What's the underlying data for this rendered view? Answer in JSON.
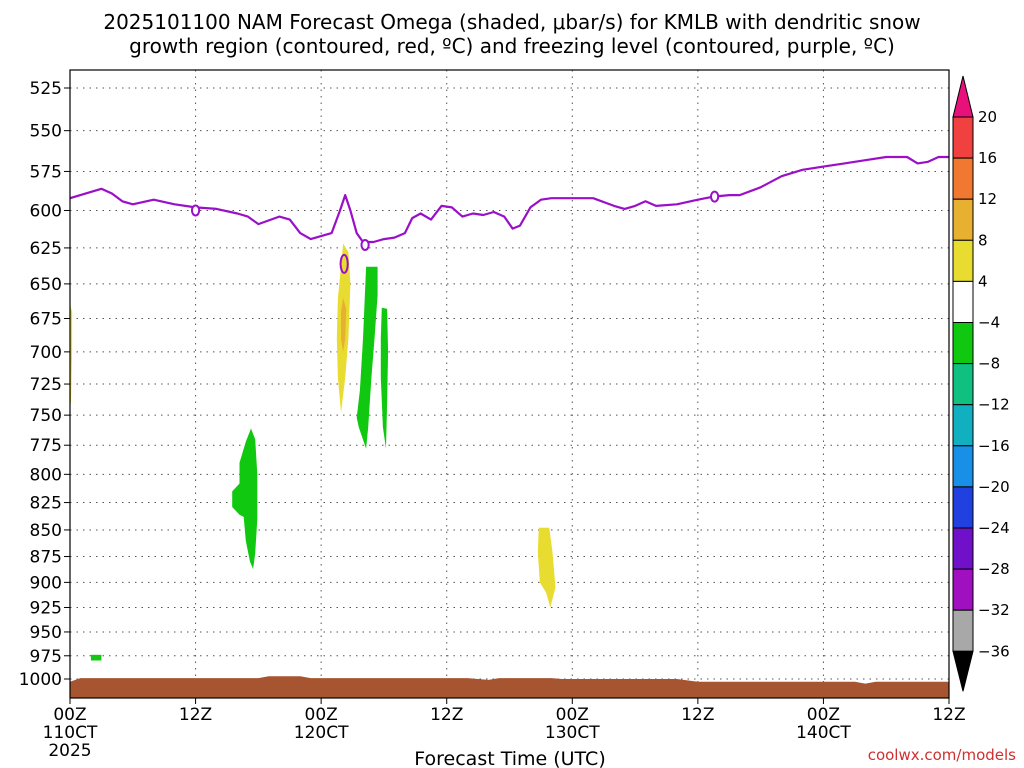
{
  "chart_data": {
    "type": "heatmap",
    "title_lines": [
      "2025101100 NAM Forecast Omega (shaded, μbar/s) for KMLB with dendritic snow",
      "growth region (contoured, red, ºC) and freezing level (contoured, purple, ºC)"
    ],
    "xlabel": "Forecast Time (UTC)",
    "x_ticks": [
      {
        "hour": 0,
        "lines": [
          "00Z",
          "110CT",
          "2025"
        ]
      },
      {
        "hour": 12,
        "lines": [
          "12Z"
        ]
      },
      {
        "hour": 24,
        "lines": [
          "00Z",
          "120CT"
        ]
      },
      {
        "hour": 36,
        "lines": [
          "12Z"
        ]
      },
      {
        "hour": 48,
        "lines": [
          "00Z",
          "130CT"
        ]
      },
      {
        "hour": 60,
        "lines": [
          "12Z"
        ]
      },
      {
        "hour": 72,
        "lines": [
          "00Z",
          "140CT"
        ]
      },
      {
        "hour": 84,
        "lines": [
          "12Z"
        ]
      }
    ],
    "xlim": [
      0,
      84
    ],
    "ylim": [
      1015,
      510
    ],
    "y_scale": "log",
    "y_ticks": [
      525,
      550,
      575,
      600,
      625,
      650,
      675,
      700,
      725,
      750,
      775,
      800,
      825,
      850,
      875,
      900,
      925,
      950,
      975,
      1000
    ],
    "grid": true,
    "colorbar": {
      "labels": [
        "20",
        "16",
        "12",
        "8",
        "4",
        "−4",
        "−8",
        "−12",
        "−16",
        "−20",
        "−24",
        "−28",
        "−32",
        "−36"
      ],
      "colors": [
        "#e8107a",
        "#f04040",
        "#f07830",
        "#e8b030",
        "#e8dc30",
        "#ffffff",
        "#10c810",
        "#10c080",
        "#10b0c0",
        "#1890e8",
        "#2040e0",
        "#7010c8",
        "#a010c0",
        "#a8a8a8",
        "#000000"
      ]
    },
    "freezing_level": {
      "color": "#9a10c8",
      "label": "0",
      "label_points": [
        {
          "hour": 12,
          "p": 600
        },
        {
          "hour": 28.2,
          "p": 623
        },
        {
          "hour": 61.6,
          "p": 591
        }
      ],
      "points": [
        [
          0,
          592
        ],
        [
          2,
          588
        ],
        [
          3,
          586
        ],
        [
          4,
          589
        ],
        [
          5,
          594
        ],
        [
          6,
          596
        ],
        [
          8,
          593
        ],
        [
          10,
          596
        ],
        [
          12,
          598
        ],
        [
          14,
          599
        ],
        [
          16,
          602
        ],
        [
          17,
          604
        ],
        [
          18,
          609
        ],
        [
          20,
          604
        ],
        [
          21,
          606
        ],
        [
          22,
          615
        ],
        [
          23,
          619
        ],
        [
          24,
          617
        ],
        [
          25,
          615
        ],
        [
          25.8,
          600
        ],
        [
          26.3,
          590
        ],
        [
          26.8,
          600
        ],
        [
          27.4,
          615
        ],
        [
          28,
          621
        ],
        [
          29,
          621
        ],
        [
          30,
          619
        ],
        [
          31,
          618
        ],
        [
          32,
          615
        ],
        [
          32.7,
          605
        ],
        [
          33.5,
          602
        ],
        [
          34.5,
          606
        ],
        [
          35.5,
          597
        ],
        [
          36.5,
          598
        ],
        [
          37.5,
          604
        ],
        [
          38.5,
          602
        ],
        [
          39.5,
          603
        ],
        [
          40.5,
          601
        ],
        [
          41.5,
          604
        ],
        [
          42.3,
          612
        ],
        [
          43,
          610
        ],
        [
          44,
          598
        ],
        [
          45,
          593
        ],
        [
          46,
          592
        ],
        [
          48,
          592
        ],
        [
          50,
          592
        ],
        [
          52,
          597
        ],
        [
          53,
          599
        ],
        [
          54,
          597
        ],
        [
          55,
          594
        ],
        [
          56,
          597
        ],
        [
          58,
          596
        ],
        [
          60,
          593
        ],
        [
          61.5,
          591
        ],
        [
          63,
          590
        ],
        [
          64,
          590
        ],
        [
          66,
          585
        ],
        [
          68,
          578
        ],
        [
          70,
          574
        ],
        [
          72,
          572
        ],
        [
          74,
          570
        ],
        [
          76,
          568
        ],
        [
          78,
          566
        ],
        [
          80,
          566
        ],
        [
          81,
          570
        ],
        [
          82,
          569
        ],
        [
          83,
          566
        ],
        [
          84,
          566
        ]
      ]
    },
    "dgz_contour": {
      "color": "#d62020",
      "label_points": [
        {
          "hour": 26.2,
          "p": 636
        }
      ]
    },
    "omega_regions": [
      {
        "value": -6,
        "color": "#10c810",
        "points": [
          [
            15.5,
            815
          ],
          [
            16.2,
            808
          ],
          [
            16.2,
            790
          ],
          [
            16.8,
            772
          ],
          [
            17.3,
            761
          ],
          [
            17.7,
            770
          ],
          [
            17.9,
            800
          ],
          [
            17.9,
            840
          ],
          [
            17.7,
            872
          ],
          [
            17.5,
            887
          ],
          [
            17.2,
            880
          ],
          [
            16.8,
            860
          ],
          [
            16.6,
            838
          ],
          [
            16.2,
            836
          ],
          [
            15.5,
            829
          ]
        ]
      },
      {
        "value": -6,
        "color": "#10c810",
        "points": [
          [
            28.3,
            638
          ],
          [
            29.4,
            638
          ],
          [
            29.4,
            658
          ],
          [
            29.1,
            690
          ],
          [
            28.8,
            720
          ],
          [
            28.5,
            760
          ],
          [
            28.3,
            778
          ],
          [
            27.6,
            760
          ],
          [
            27.4,
            752
          ],
          [
            27.7,
            730
          ],
          [
            28,
            690
          ]
        ]
      },
      {
        "value": -6,
        "color": "#10c810",
        "points": [
          [
            29.8,
            667
          ],
          [
            30.3,
            668
          ],
          [
            30.4,
            700
          ],
          [
            30.3,
            740
          ],
          [
            30.2,
            778
          ],
          [
            29.9,
            760
          ],
          [
            29.7,
            720
          ],
          [
            29.7,
            690
          ]
        ]
      },
      {
        "value": -6,
        "color": "#10c810",
        "points": [
          [
            2,
            974
          ],
          [
            3,
            974
          ],
          [
            3,
            980
          ],
          [
            2,
            980
          ]
        ]
      },
      {
        "value": 6,
        "color": "#e8dc30",
        "points": [
          [
            26.1,
            622
          ],
          [
            26.6,
            628
          ],
          [
            26.8,
            650
          ],
          [
            26.6,
            690
          ],
          [
            26.3,
            720
          ],
          [
            25.9,
            748
          ],
          [
            25.6,
            720
          ],
          [
            25.5,
            690
          ],
          [
            25.6,
            660
          ],
          [
            25.9,
            638
          ]
        ]
      },
      {
        "value": 10,
        "color": "#e8b030",
        "points": [
          [
            26.1,
            660
          ],
          [
            26.4,
            668
          ],
          [
            26.3,
            690
          ],
          [
            26.1,
            700
          ],
          [
            25.9,
            690
          ],
          [
            25.9,
            670
          ]
        ]
      },
      {
        "value": 6,
        "color": "#e8dc30",
        "points": [
          [
            0,
            665
          ],
          [
            0.2,
            670
          ],
          [
            0.2,
            700
          ],
          [
            0.1,
            740
          ],
          [
            0,
            740
          ]
        ]
      },
      {
        "value": 6,
        "color": "#e8dc30",
        "points": [
          [
            44.8,
            848
          ],
          [
            45.8,
            848
          ],
          [
            46.1,
            870
          ],
          [
            46.4,
            905
          ],
          [
            45.9,
            925
          ],
          [
            45.5,
            910
          ],
          [
            44.9,
            900
          ],
          [
            44.7,
            870
          ]
        ]
      }
    ],
    "terrain": {
      "color": "#a65530",
      "surface_points": [
        [
          0,
          1003
        ],
        [
          1,
          999
        ],
        [
          18,
          999
        ],
        [
          19,
          997
        ],
        [
          22,
          997
        ],
        [
          23,
          999
        ],
        [
          38,
          999
        ],
        [
          40,
          1001
        ],
        [
          41,
          999
        ],
        [
          46,
          999
        ],
        [
          47,
          1000
        ],
        [
          58,
          1000
        ],
        [
          60,
          1003
        ],
        [
          75,
          1003
        ],
        [
          76,
          1005
        ],
        [
          77,
          1003
        ],
        [
          84,
          1003
        ]
      ]
    },
    "credit": "coolwx.com/models"
  }
}
